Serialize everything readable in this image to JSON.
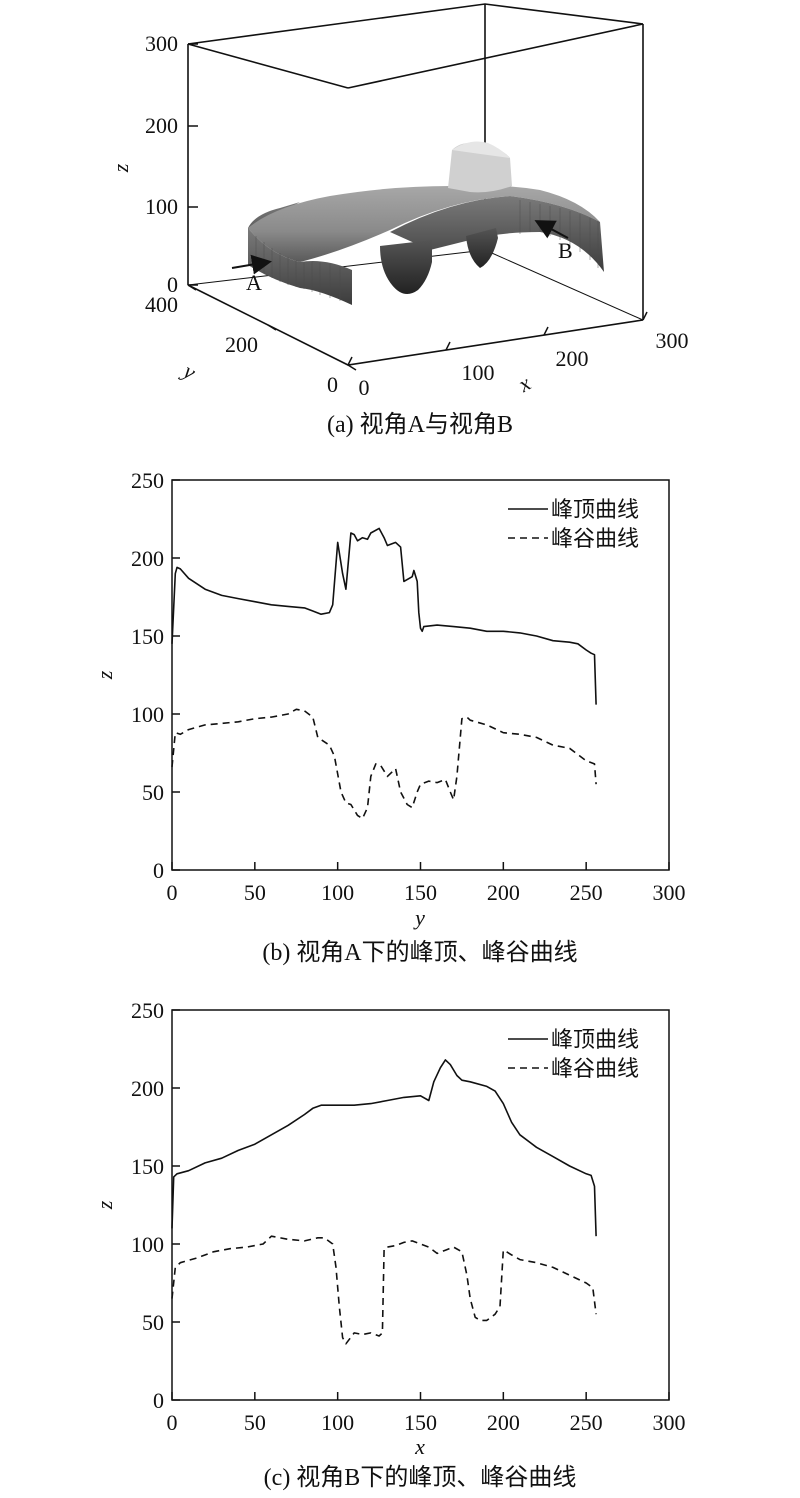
{
  "chart_data": [
    {
      "panel": "a",
      "type": "surface",
      "caption": "(a) 视角A与视角B",
      "xlabel": "x",
      "ylabel": "y",
      "zlabel": "z",
      "x_ticks": [
        "0",
        "100",
        "200",
        "300"
      ],
      "y_ticks": [
        "0",
        "200",
        "400"
      ],
      "z_ticks": [
        "0",
        "100",
        "200",
        "300"
      ],
      "annotations": [
        "A",
        "B"
      ]
    },
    {
      "panel": "b",
      "type": "line",
      "caption": "(b) 视角A下的峰顶、峰谷曲线",
      "xlabel": "y",
      "ylabel": "z",
      "xlim": [
        0,
        300
      ],
      "ylim": [
        0,
        250
      ],
      "x_ticks": [
        "0",
        "50",
        "100",
        "150",
        "200",
        "250",
        "300"
      ],
      "y_ticks": [
        "0",
        "50",
        "100",
        "150",
        "200",
        "250"
      ],
      "legend_position": "top-right",
      "series": [
        {
          "name": "峰顶曲线",
          "style": "solid",
          "x": [
            0,
            2,
            3,
            5,
            10,
            20,
            30,
            40,
            50,
            60,
            70,
            80,
            85,
            90,
            95,
            97,
            100,
            103,
            105,
            108,
            110,
            112,
            115,
            118,
            120,
            125,
            128,
            130,
            135,
            138,
            140,
            145,
            146,
            148,
            149,
            150,
            151,
            152,
            160,
            170,
            180,
            190,
            200,
            210,
            220,
            230,
            240,
            245,
            250,
            253,
            255,
            256
          ],
          "y": [
            145,
            190,
            194,
            193,
            187,
            180,
            176,
            174,
            172,
            170,
            169,
            168,
            166,
            164,
            165,
            170,
            210,
            190,
            180,
            216,
            215,
            211,
            213,
            212,
            216,
            219,
            213,
            208,
            210,
            207,
            185,
            188,
            192,
            185,
            165,
            155,
            153,
            156,
            157,
            156,
            155,
            153,
            153,
            152,
            150,
            147,
            146,
            145,
            141,
            139,
            138,
            106
          ]
        },
        {
          "name": "峰谷曲线",
          "style": "dashed",
          "x": [
            0,
            2,
            5,
            10,
            20,
            30,
            40,
            50,
            60,
            70,
            75,
            80,
            85,
            88,
            95,
            98,
            102,
            105,
            108,
            112,
            115,
            118,
            120,
            123,
            126,
            130,
            133,
            135,
            138,
            142,
            145,
            148,
            150,
            155,
            160,
            165,
            168,
            170,
            172,
            175,
            178,
            180,
            190,
            200,
            210,
            220,
            230,
            240,
            250,
            255,
            256
          ],
          "y": [
            66,
            88,
            87,
            90,
            93,
            94,
            95,
            97,
            98,
            100,
            103,
            102,
            98,
            85,
            80,
            73,
            50,
            43,
            42,
            35,
            33,
            40,
            60,
            68,
            67,
            60,
            63,
            65,
            50,
            42,
            40,
            50,
            55,
            57,
            56,
            58,
            50,
            45,
            60,
            97,
            98,
            96,
            93,
            88,
            87,
            85,
            80,
            78,
            70,
            68,
            55
          ]
        }
      ]
    },
    {
      "panel": "c",
      "type": "line",
      "caption": "(c) 视角B下的峰顶、峰谷曲线",
      "xlabel": "x",
      "ylabel": "z",
      "xlim": [
        0,
        300
      ],
      "ylim": [
        0,
        250
      ],
      "x_ticks": [
        "0",
        "50",
        "100",
        "150",
        "200",
        "250",
        "300"
      ],
      "y_ticks": [
        "0",
        "50",
        "100",
        "150",
        "200",
        "250"
      ],
      "legend_position": "top-right",
      "series": [
        {
          "name": "峰顶曲线",
          "style": "solid",
          "x": [
            0,
            1,
            3,
            10,
            20,
            30,
            40,
            50,
            60,
            70,
            80,
            85,
            90,
            100,
            110,
            120,
            130,
            140,
            150,
            155,
            158,
            162,
            165,
            168,
            172,
            175,
            180,
            190,
            195,
            200,
            205,
            210,
            220,
            230,
            240,
            250,
            253,
            255,
            256
          ],
          "y": [
            110,
            143,
            145,
            147,
            152,
            155,
            160,
            164,
            170,
            176,
            183,
            187,
            189,
            189,
            189,
            190,
            192,
            194,
            195,
            192,
            204,
            213,
            218,
            215,
            208,
            205,
            204,
            201,
            198,
            190,
            178,
            170,
            162,
            156,
            150,
            145,
            144,
            137,
            105
          ]
        },
        {
          "name": "峰谷曲线",
          "style": "dashed",
          "x": [
            0,
            2,
            5,
            15,
            25,
            35,
            45,
            55,
            60,
            70,
            80,
            88,
            92,
            97,
            99,
            101,
            103,
            105,
            110,
            115,
            120,
            125,
            127,
            128,
            130,
            135,
            140,
            145,
            150,
            155,
            160,
            165,
            170,
            175,
            178,
            180,
            183,
            186,
            190,
            195,
            198,
            200,
            202,
            205,
            210,
            220,
            230,
            240,
            250,
            254,
            256
          ],
          "y": [
            65,
            85,
            88,
            91,
            95,
            97,
            98,
            100,
            105,
            103,
            102,
            104,
            104,
            100,
            85,
            60,
            40,
            36,
            43,
            42,
            43,
            41,
            43,
            97,
            98,
            99,
            101,
            102,
            100,
            98,
            94,
            96,
            98,
            95,
            80,
            65,
            53,
            51,
            51,
            55,
            60,
            96,
            95,
            93,
            90,
            88,
            85,
            80,
            75,
            72,
            55
          ]
        }
      ]
    }
  ]
}
